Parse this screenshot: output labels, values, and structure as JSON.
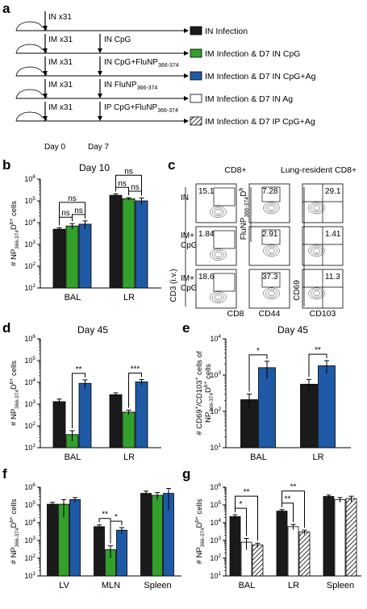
{
  "panel_a": {
    "label": "a",
    "rows": [
      {
        "mouse": "IN x31",
        "treat": "",
        "legend": "IN Infection",
        "fill": "#1a1a1a",
        "pattern": false
      },
      {
        "mouse": "IM x31",
        "treat": "IN CpG",
        "legend": "IM Infection & D7 IN CpG",
        "fill": "#33a02c",
        "pattern": false
      },
      {
        "mouse": "IM x31",
        "treat": "IN CpG+FluNP",
        "treat_sub": "366-374",
        "legend": "IM Infection & D7 IN CpG+Ag",
        "fill": "#1f5aa6",
        "pattern": false
      },
      {
        "mouse": "IM x31",
        "treat": "IN FluNP",
        "treat_sub": "366-374",
        "legend": "IM Infection & D7 IN Ag",
        "fill": "#ffffff",
        "pattern": false
      },
      {
        "mouse": "IM x31",
        "treat": "IP CpG+FluNP",
        "treat_sub": "366-374",
        "legend": "IM Infection & D7 IP CpG+Ag",
        "fill": "#ffffff",
        "pattern": true
      }
    ],
    "day0": "Day 0",
    "day7": "Day 7"
  },
  "panel_b": {
    "label": "b",
    "title": "Day 10"
  },
  "panel_c": {
    "label": "c",
    "head1": "CD8+",
    "head2": "Lung-resident CD8+",
    "rows": [
      "IN",
      "IM+\nCpG",
      "IM+\nCpG/Ag"
    ],
    "values": [
      [
        "15.1",
        "7.28",
        "29.1"
      ],
      [
        "1.84",
        "2.91",
        "1.41"
      ],
      [
        "18.6",
        "37.3",
        "11.3"
      ]
    ],
    "yaxis1": "CD3 (i.v.)",
    "xaxis1": "CD8",
    "yaxis2": "FluNP",
    "yaxis2_sub": "366-374",
    "yaxis2_sup": "D",
    "yaxis2_sup2": "b",
    "xaxis2": "CD44",
    "yaxis3": "CD69",
    "xaxis3": "CD103"
  },
  "panel_d": {
    "label": "d",
    "title": "Day 45"
  },
  "panel_e": {
    "label": "e",
    "title": "Day 45"
  },
  "panel_f": {
    "label": "f"
  },
  "panel_g": {
    "label": "g"
  },
  "colors": {
    "black": "#1a1a1a",
    "green": "#33a02c",
    "blue": "#1f5aa6",
    "white": "#ffffff"
  },
  "chart_data": [
    {
      "id": "b",
      "type": "bar",
      "title": "Day 10",
      "log": true,
      "ylim": [
        10,
        1000000
      ],
      "ylabel": "# NP366-374Db+ cells",
      "categories": [
        "BAL",
        "LR"
      ],
      "series": [
        {
          "color": "black",
          "values": [
            5000,
            180000
          ],
          "err": [
            800,
            30000
          ]
        },
        {
          "color": "green",
          "values": [
            7000,
            125000
          ],
          "err": [
            2000,
            15000
          ]
        },
        {
          "color": "blue",
          "values": [
            8500,
            100000
          ],
          "err": [
            3500,
            35000
          ]
        }
      ],
      "sig": [
        {
          "cat": 0,
          "from": 0,
          "to": 1,
          "text": "ns",
          "level": 0
        },
        {
          "cat": 0,
          "from": 1,
          "to": 2,
          "text": "ns",
          "level": 0
        },
        {
          "cat": 0,
          "from": 0,
          "to": 2,
          "text": "ns",
          "level": 1
        },
        {
          "cat": 1,
          "from": 0,
          "to": 1,
          "text": "ns",
          "level": 0
        },
        {
          "cat": 1,
          "from": 1,
          "to": 2,
          "text": "ns",
          "level": 0
        },
        {
          "cat": 1,
          "from": 0,
          "to": 2,
          "text": "ns",
          "level": 1
        }
      ]
    },
    {
      "id": "d",
      "type": "bar",
      "title": "Day 45",
      "log": true,
      "ylim": [
        10,
        1000000
      ],
      "ylabel": "# NP366-374Db+ cells",
      "categories": [
        "BAL",
        "LR"
      ],
      "series": [
        {
          "color": "black",
          "values": [
            1300,
            2700
          ],
          "err": [
            400,
            600
          ]
        },
        {
          "color": "green",
          "values": [
            40,
            430
          ],
          "err": [
            20,
            100
          ]
        },
        {
          "color": "blue",
          "values": [
            9000,
            10500
          ],
          "err": [
            4000,
            3000
          ]
        }
      ],
      "sig": [
        {
          "cat": 0,
          "from": 1,
          "to": 2,
          "text": "**",
          "level": 0
        },
        {
          "cat": 1,
          "from": 1,
          "to": 2,
          "text": "***",
          "level": 0
        }
      ]
    },
    {
      "id": "e",
      "type": "bar",
      "title": "Day 45",
      "log": true,
      "ylim": [
        10,
        10000
      ],
      "ylabel": "# CD69+/CD103+ cells of NP366-374Db+ cells",
      "categories": [
        "BAL",
        "LR"
      ],
      "series": [
        {
          "color": "black",
          "values": [
            210,
            560
          ],
          "err": [
            90,
            200
          ]
        },
        {
          "color": "blue",
          "values": [
            1600,
            1800
          ],
          "err": [
            800,
            700
          ]
        }
      ],
      "sig": [
        {
          "cat": 0,
          "from": 0,
          "to": 1,
          "text": "*",
          "level": 0
        },
        {
          "cat": 1,
          "from": 0,
          "to": 1,
          "text": "**",
          "level": 0
        }
      ]
    },
    {
      "id": "f",
      "type": "bar",
      "log": true,
      "ylim": [
        10,
        1000000
      ],
      "ylabel": "# NP366-374Db+ cells",
      "categories": [
        "LV",
        "MLN",
        "Spleen"
      ],
      "series": [
        {
          "color": "black",
          "values": [
            110000,
            6000,
            450000
          ],
          "err": [
            30000,
            1500,
            150000
          ]
        },
        {
          "color": "green",
          "values": [
            110000,
            300,
            350000
          ],
          "err": [
            90000,
            200,
            150000
          ]
        },
        {
          "color": "blue",
          "values": [
            200000,
            3800,
            450000
          ],
          "err": [
            60000,
            1500,
            400000
          ]
        }
      ],
      "sig": [
        {
          "cat": 1,
          "from": 0,
          "to": 1,
          "text": "**",
          "level": 0
        },
        {
          "cat": 1,
          "from": 1,
          "to": 2,
          "text": "*",
          "level": 0
        }
      ]
    },
    {
      "id": "g",
      "type": "bar",
      "log": true,
      "ylim": [
        10,
        1000000
      ],
      "ylabel": "# NP366-374Db+ cells",
      "categories": [
        "BAL",
        "LR",
        "Spleen"
      ],
      "series": [
        {
          "color": "black",
          "values": [
            22000,
            45000,
            300000
          ],
          "err": [
            6000,
            10000,
            60000
          ]
        },
        {
          "color": "white",
          "values": [
            800,
            6000,
            200000
          ],
          "err": [
            500,
            2000,
            60000
          ]
        },
        {
          "color": "hatch",
          "values": [
            550,
            3000,
            230000
          ],
          "err": [
            150,
            800,
            80000
          ]
        }
      ],
      "sig": [
        {
          "cat": 0,
          "from": 0,
          "to": 1,
          "text": "*",
          "level": 0
        },
        {
          "cat": 0,
          "from": 0,
          "to": 2,
          "text": "**",
          "level": 1
        },
        {
          "cat": 1,
          "from": 0,
          "to": 1,
          "text": "**",
          "level": 0
        },
        {
          "cat": 1,
          "from": 0,
          "to": 2,
          "text": "**",
          "level": 1
        }
      ]
    }
  ]
}
